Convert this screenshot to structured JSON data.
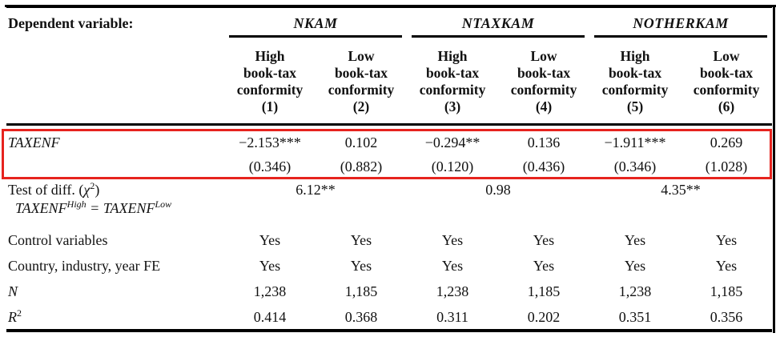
{
  "accent_colors": {
    "highlight_box": "#e6231e",
    "rule": "#000000"
  },
  "table": {
    "dependent_variable_label": "Dependent variable:",
    "groups": [
      {
        "name": "NKAM"
      },
      {
        "name": "NTAXKAM"
      },
      {
        "name": "NOTHERKAM"
      }
    ],
    "column_headers": [
      "High\nbook-tax\nconformity\n(1)",
      "Low\nbook-tax\nconformity\n(2)",
      "High\nbook-tax\nconformity\n(3)",
      "Low\nbook-tax\nconformity\n(4)",
      "High\nbook-tax\nconformity\n(5)",
      "Low\nbook-tax\nconformity\n(6)"
    ],
    "rows": {
      "taxenf": {
        "label": "TAXENF",
        "coefficients": [
          "−2.153***",
          "0.102",
          "−0.294**",
          "0.136",
          "−1.911***",
          "0.269"
        ],
        "standard_errors": [
          "(0.346)",
          "(0.882)",
          "(0.120)",
          "(0.436)",
          "(0.346)",
          "(1.028)"
        ]
      },
      "test_of_diff": {
        "label_prefix": "Test of diff. (",
        "chi": "χ",
        "chi_sup": "2",
        "label_suffix": ")",
        "eq_var1": "TAXENF",
        "eq_sup1": "High",
        "eq_mid": " = ",
        "eq_var2": "TAXENF",
        "eq_sup2": "Low",
        "values": [
          "6.12**",
          "0.98",
          "4.35**"
        ]
      },
      "control_variables": {
        "label": "Control variables",
        "values": [
          "Yes",
          "Yes",
          "Yes",
          "Yes",
          "Yes",
          "Yes"
        ]
      },
      "fixed_effects": {
        "label": "Country, industry, year FE",
        "values": [
          "Yes",
          "Yes",
          "Yes",
          "Yes",
          "Yes",
          "Yes"
        ]
      },
      "observations": {
        "label": "N",
        "values": [
          "1,238",
          "1,185",
          "1,238",
          "1,185",
          "1,238",
          "1,185"
        ]
      },
      "r_squared": {
        "label_base": "R",
        "label_sup": "2",
        "values": [
          "0.414",
          "0.368",
          "0.311",
          "0.202",
          "0.351",
          "0.356"
        ]
      }
    }
  }
}
